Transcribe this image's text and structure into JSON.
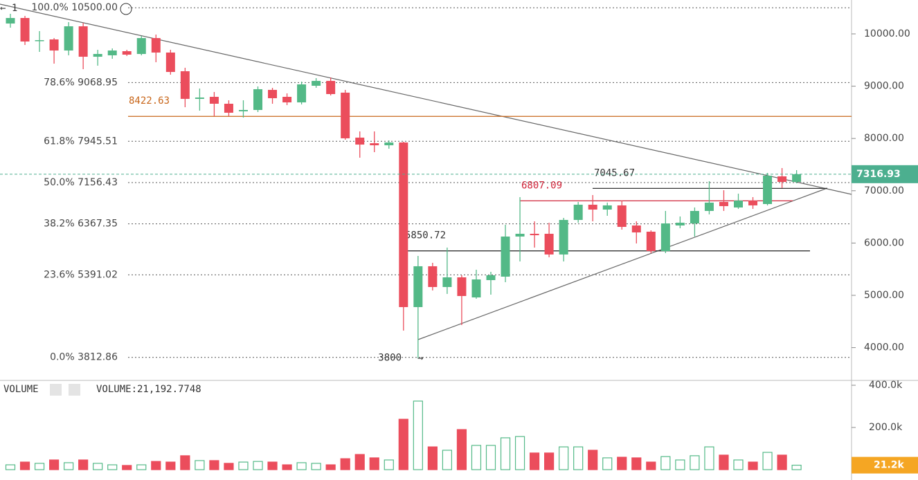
{
  "chart_data": [
    {
      "type": "candlestick",
      "open": [
        10198,
        10304,
        9860,
        9894,
        9682,
        10145,
        9563,
        9590,
        9669,
        9616,
        9920,
        9643,
        9286,
        8757,
        8796,
        8664,
        8519,
        8545,
        8929,
        8796,
        8690,
        9008,
        9101,
        8876,
        8016,
        7909,
        7870,
        7923,
        4775,
        5556,
        5159,
        5344,
        4960,
        5291,
        5357,
        6124,
        6177,
        6177,
        5781,
        6442,
        6733,
        6640,
        6720,
        6336,
        6217,
        5846,
        6336,
        6375,
        6614,
        6786,
        6680,
        6812,
        6746,
        7275,
        7169
      ],
      "high": [
        10384,
        10344,
        10053,
        9920,
        10225,
        10211,
        9695,
        9722,
        9695,
        9960,
        9987,
        9696,
        9352,
        8955,
        8889,
        8730,
        8730,
        8995,
        8968,
        8862,
        9087,
        9154,
        9167,
        8929,
        8135,
        8135,
        7963,
        7936,
        5754,
        5622,
        5913,
        5384,
        5490,
        5450,
        6349,
        6878,
        6415,
        6389,
        6481,
        6786,
        6918,
        6773,
        6812,
        6415,
        6243,
        6614,
        6508,
        6680,
        7183,
        7010,
        6944,
        6878,
        7341,
        7434,
        7394
      ],
      "low": [
        10119,
        9788,
        9656,
        9431,
        9590,
        9325,
        9392,
        9524,
        9577,
        9590,
        9458,
        9220,
        8598,
        8532,
        8426,
        8426,
        8399,
        8505,
        8664,
        8638,
        8651,
        8969,
        8823,
        7976,
        7632,
        7738,
        7804,
        4325,
        3800,
        5093,
        5027,
        4431,
        4934,
        5013,
        5251,
        5648,
        5913,
        5728,
        5648,
        6389,
        6415,
        6521,
        6257,
        5992,
        5807,
        5807,
        6283,
        6124,
        6548,
        6614,
        6653,
        6653,
        6720,
        7050,
        7143
      ],
      "close": [
        10304,
        9854,
        9880,
        9682,
        10145,
        9563,
        9616,
        9682,
        9603,
        9920,
        9643,
        9272,
        8757,
        8783,
        8664,
        8492,
        8545,
        8942,
        8770,
        8690,
        9034,
        9101,
        8849,
        8003,
        7883,
        7870,
        7923,
        4775,
        5556,
        5159,
        5344,
        4987,
        5304,
        5384,
        6124,
        6177,
        6150,
        5781,
        6442,
        6733,
        6640,
        6720,
        6309,
        6203,
        5846,
        6375,
        6389,
        6614,
        6773,
        6706,
        6812,
        6720,
        7288,
        7169,
        7316.93
      ],
      "up_color": "#53b987",
      "down_color": "#eb4d5c",
      "ylim": [
        3373,
        10648
      ],
      "yticks": [
        {
          "value": 4000,
          "label": "4000.00"
        },
        {
          "value": 5000,
          "label": "5000.00"
        },
        {
          "value": 6000,
          "label": "6000.00"
        },
        {
          "value": 7000,
          "label": "7000.00"
        },
        {
          "value": 8000,
          "label": "8000.00"
        },
        {
          "value": 9000,
          "label": "9000.00"
        },
        {
          "value": 10000,
          "label": "10000.00"
        }
      ],
      "fib_levels": [
        {
          "value": 10500,
          "label": "100.0% 10500.00"
        },
        {
          "value": 9068.95,
          "label": "78.6% 9068.95"
        },
        {
          "value": 7945.51,
          "label": "61.8% 7945.51"
        },
        {
          "value": 7156.43,
          "label": "50.0% 7156.43"
        },
        {
          "value": 6367.35,
          "label": "38.2% 6367.35"
        },
        {
          "value": 5391.02,
          "label": "23.6% 5391.02"
        },
        {
          "value": 3812.86,
          "label": "0.0% 3812.86"
        }
      ],
      "levels": [
        {
          "value": 8422.63,
          "label": "8422.63",
          "color": "#c8661a"
        },
        {
          "value": 7045.67,
          "label": "7045.67",
          "color": "#333333"
        },
        {
          "value": 6807.09,
          "label": "6807.09",
          "color": "#d0253a"
        },
        {
          "value": 5850.72,
          "label": "5850.72",
          "color": "#333333"
        }
      ],
      "low_annotation": {
        "value": 3800,
        "label": "3800"
      },
      "fib_marker": "← 1",
      "price_color": "#4caf8f"
    },
    {
      "type": "bar",
      "name": "VOLUME",
      "values": [
        23000,
        36000,
        30000,
        46000,
        33000,
        46000,
        30000,
        23000,
        20000,
        23000,
        39000,
        36000,
        66000,
        43000,
        43000,
        30000,
        36000,
        39000,
        36000,
        23000,
        33000,
        30000,
        23000,
        52000,
        72000,
        56000,
        46000,
        239000,
        325000,
        108000,
        92000,
        190000,
        115000,
        115000,
        151000,
        157000,
        79000,
        79000,
        108000,
        108000,
        92000,
        56000,
        59000,
        56000,
        36000,
        62000,
        46000,
        66000,
        108000,
        69000,
        46000,
        36000,
        82000,
        69000,
        21192.7748
      ],
      "value_labels": {
        "legend": "VOLUME:21,192.7748",
        "axis": "21.2k"
      },
      "ylim": [
        -49000,
        423000
      ],
      "yticks": [
        {
          "value": 200000,
          "label": "200.0k"
        },
        {
          "value": 400000,
          "label": "400.0k"
        }
      ],
      "label_color": "#f5a623"
    }
  ]
}
